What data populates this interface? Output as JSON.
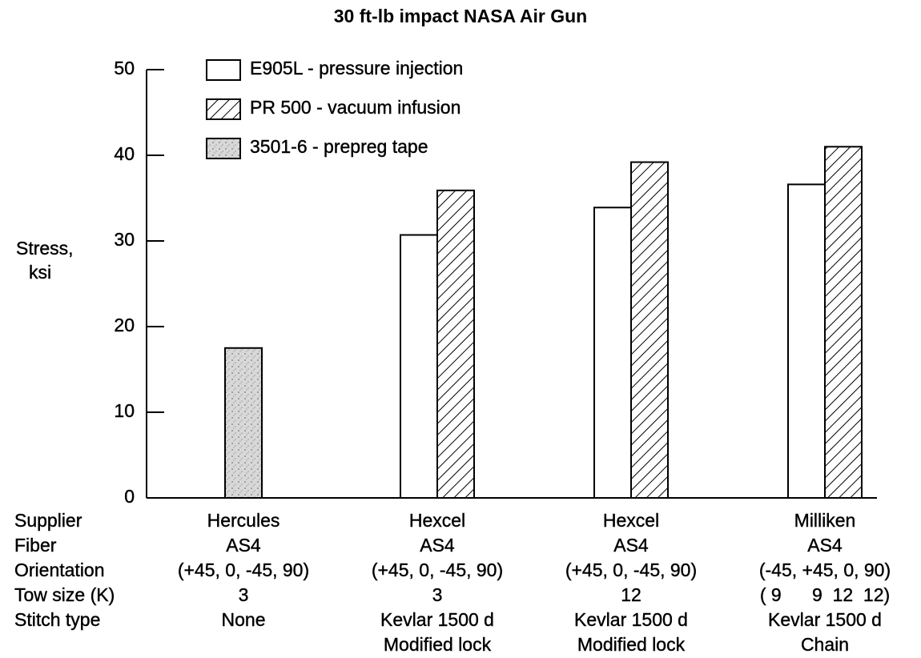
{
  "chart_data": {
    "type": "bar",
    "title": "30 ft-lb impact NASA Air Gun",
    "ylabel": [
      "Stress,",
      "ksi"
    ],
    "row_labels": [
      "Supplier",
      "Fiber",
      "Orientation",
      "Tow size (K)",
      "Stitch type"
    ],
    "categories": [
      [
        "Hercules",
        "AS4",
        "(+45, 0, -45, 90)",
        "3",
        "None"
      ],
      [
        "Hexcel",
        "AS4",
        "(+45, 0, -45, 90)",
        "3",
        "Kevlar 1500 d",
        "Modified lock"
      ],
      [
        "Hexcel",
        "AS4",
        "(+45, 0, -45, 90)",
        "12",
        "Kevlar 1500 d",
        "Modified lock"
      ],
      [
        "Milliken",
        "AS4",
        "(-45, +45, 0, 90)",
        "( 9      9  12  12)",
        "Kevlar 1500 d",
        "Chain"
      ]
    ],
    "series": [
      {
        "name": "E905L - pressure injection",
        "color": "#ffffff",
        "fill": "plain",
        "values": [
          null,
          30.7,
          33.9,
          36.6
        ]
      },
      {
        "name": "PR 500 - vacuum infusion",
        "color": "#ffffff",
        "fill": "hatch",
        "values": [
          null,
          35.9,
          39.2,
          41.0
        ]
      },
      {
        "name": "3501-6 - prepreg tape",
        "color": "#cfcfcf",
        "fill": "stipple",
        "values": [
          17.5,
          null,
          null,
          null
        ]
      }
    ],
    "ylim": [
      0,
      50
    ],
    "yticks": [
      0,
      10,
      20,
      30,
      40,
      50
    ]
  }
}
